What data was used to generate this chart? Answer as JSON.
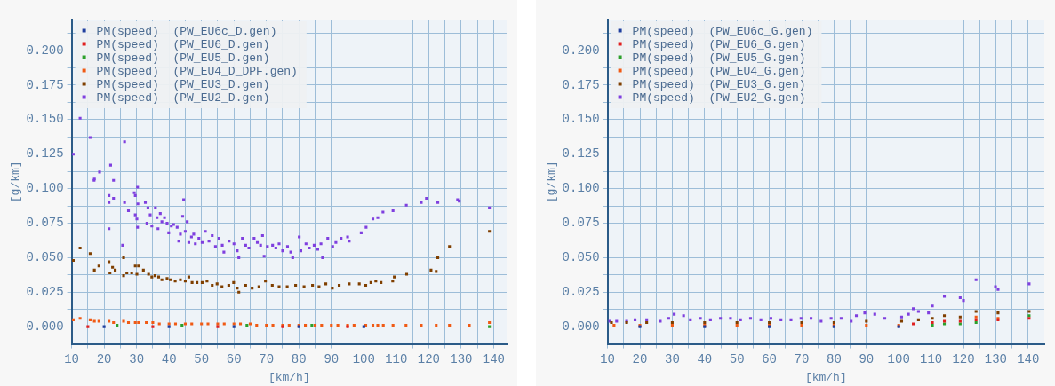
{
  "chart_data": [
    {
      "type": "scatter",
      "xlabel": "[km/h]",
      "ylabel": "[g/km]",
      "xlim": [
        10,
        144
      ],
      "ylim": [
        -0.0125,
        0.2225
      ],
      "xticks": [
        10,
        {
          "value": 15,
          "label": null
        },
        20,
        {
          "value": 25,
          "label": null
        },
        30,
        {
          "value": 35,
          "label": null
        },
        40,
        {
          "value": 45,
          "label": null
        },
        50,
        {
          "value": 55,
          "label": null
        },
        60,
        {
          "value": 65,
          "label": null
        },
        70,
        {
          "value": 75,
          "label": null
        },
        80,
        {
          "value": 85,
          "label": null
        },
        90,
        {
          "value": 95,
          "label": null
        },
        100,
        {
          "value": 105,
          "label": null
        },
        110,
        {
          "value": 115,
          "label": null
        },
        120,
        {
          "value": 125,
          "label": null
        },
        130,
        {
          "value": 135,
          "label": null
        },
        140
      ],
      "yticks": [
        {
          "value": 0,
          "label": "0.000"
        },
        {
          "value": 0.0125,
          "label": null
        },
        {
          "value": 0.025,
          "label": "0.025"
        },
        {
          "value": 0.0375,
          "label": null
        },
        {
          "value": 0.05,
          "label": "0.050"
        },
        {
          "value": 0.0625,
          "label": null
        },
        {
          "value": 0.075,
          "label": "0.075"
        },
        {
          "value": 0.0875,
          "label": null
        },
        {
          "value": 0.1,
          "label": "0.100"
        },
        {
          "value": 0.1125,
          "label": null
        },
        {
          "value": 0.125,
          "label": "0.125"
        },
        {
          "value": 0.1375,
          "label": null
        },
        {
          "value": 0.15,
          "label": "0.150"
        },
        {
          "value": 0.1625,
          "label": null
        },
        {
          "value": 0.175,
          "label": "0.175"
        },
        {
          "value": 0.1875,
          "label": null
        },
        {
          "value": 0.2,
          "label": "0.200"
        },
        {
          "value": 0.2125,
          "label": null
        }
      ],
      "grid": true,
      "legend": "top left",
      "marker": "square",
      "series": [
        {
          "name": "PM(speed)  (PW_EU6c_D.gen)",
          "color": "#1f3f9f",
          "x": [
            20,
            40,
            60,
            80,
            100
          ],
          "values": [
            0.0,
            0.0,
            0.0,
            0.0,
            0.0
          ]
        },
        {
          "name": "PM(speed)  (PW_EU6_D.gen)",
          "color": "#e02020",
          "x": [
            15,
            35,
            55,
            75,
            95
          ],
          "values": [
            0.0,
            0.0,
            0.0,
            0.0,
            0.0
          ]
        },
        {
          "name": "PM(speed)  (PW_EU5_D.gen)",
          "color": "#2ca02c",
          "x": [
            24,
            44,
            64,
            84,
            138.7
          ],
          "values": [
            0.001,
            0.001,
            0.001,
            0.001,
            0.0
          ]
        },
        {
          "name": "PM(speed)  (PW_EU4_D_DPF.gen)",
          "color": "#f05a14",
          "x": [
            10.5,
            12.6,
            15.7,
            17,
            18.4,
            21.5,
            22.9,
            26,
            27.5,
            29.6,
            30.6,
            33,
            35,
            37,
            40,
            42,
            45,
            47,
            50,
            52,
            55,
            57,
            60,
            62,
            65,
            67,
            70,
            72,
            75,
            77,
            80,
            82,
            85,
            87,
            90,
            92,
            95,
            97,
            100.6,
            102.8,
            104.3,
            106,
            109,
            113,
            117.7,
            122.3,
            126.4,
            132.5,
            138.7
          ],
          "values": [
            0.005,
            0.006,
            0.005,
            0.004,
            0.004,
            0.004,
            0.003,
            0.004,
            0.003,
            0.003,
            0.003,
            0.003,
            0.003,
            0.002,
            0.002,
            0.002,
            0.002,
            0.002,
            0.002,
            0.002,
            0.002,
            0.002,
            0.002,
            0.002,
            0.002,
            0.001,
            0.001,
            0.001,
            0.001,
            0.001,
            0.001,
            0.001,
            0.001,
            0.001,
            0.001,
            0.001,
            0.001,
            0.001,
            0.001,
            0.001,
            0.001,
            0.001,
            0.001,
            0.001,
            0.001,
            0.001,
            0.001,
            0.001,
            0.003
          ]
        },
        {
          "name": "PM(speed)  (PW_EU3_D.gen)",
          "color": "#7f3f00",
          "x": [
            10.5,
            12.6,
            15.7,
            17,
            18.4,
            21.5,
            21.8,
            22.6,
            23.4,
            26,
            26,
            27,
            28.5,
            29.6,
            30.1,
            30.6,
            32.1,
            33.7,
            34.7,
            35.7,
            36.8,
            37.8,
            39.4,
            40.4,
            41.9,
            43.5,
            45,
            46.1,
            47.1,
            48.6,
            50.2,
            51.7,
            53.3,
            54.8,
            56.3,
            58.4,
            59.9,
            61,
            61.5,
            63.6,
            65.6,
            67.7,
            69.7,
            71.8,
            73.9,
            76.4,
            79,
            81.6,
            84.2,
            86.2,
            88.3,
            90.3,
            92.4,
            95.5,
            98.6,
            100.6,
            102.2,
            103.7,
            105.3,
            108.9,
            109.4,
            113.2,
            120.7,
            122.3,
            122.8,
            126.4,
            138.7
          ],
          "values": [
            0.048,
            0.057,
            0.053,
            0.041,
            0.044,
            0.047,
            0.039,
            0.043,
            0.041,
            0.05,
            0.037,
            0.039,
            0.039,
            0.044,
            0.038,
            0.044,
            0.041,
            0.038,
            0.036,
            0.037,
            0.036,
            0.034,
            0.035,
            0.034,
            0.033,
            0.034,
            0.033,
            0.036,
            0.032,
            0.032,
            0.032,
            0.033,
            0.03,
            0.031,
            0.029,
            0.03,
            0.032,
            0.028,
            0.025,
            0.03,
            0.028,
            0.029,
            0.033,
            0.03,
            0.029,
            0.029,
            0.03,
            0.029,
            0.03,
            0.029,
            0.031,
            0.028,
            0.03,
            0.031,
            0.031,
            0.03,
            0.032,
            0.033,
            0.032,
            0.033,
            0.036,
            0.038,
            0.041,
            0.04,
            0.05,
            0.058,
            0.069
          ]
        },
        {
          "name": "PM(speed)  (PW_EU2_D.gen)",
          "color": "#7f3fdf",
          "x": [
            10.5,
            12.6,
            15.7,
            16.9,
            17,
            18.6,
            21.5,
            21.5,
            21.5,
            22,
            22.9,
            22.9,
            25.7,
            26.3,
            26.3,
            27.5,
            29.3,
            29.6,
            29.6,
            30.1,
            30.3,
            30.3,
            30.4,
            32.7,
            33.2,
            33.5,
            34.2,
            34.7,
            35.8,
            36.3,
            36.6,
            37.3,
            37.8,
            38.6,
            39.4,
            39.9,
            40.7,
            41.4,
            42.5,
            43,
            43.5,
            44.2,
            44.5,
            45,
            45.6,
            46.1,
            46.9,
            47.6,
            48.1,
            49.2,
            50.2,
            51.2,
            52.3,
            53.3,
            54.3,
            55.4,
            56.4,
            56.9,
            58.5,
            60,
            61,
            61.5,
            62.6,
            63.6,
            64.6,
            66.2,
            67.2,
            68.2,
            68.8,
            69.3,
            70.3,
            71.9,
            72.9,
            73.9,
            75,
            76.5,
            77.5,
            78.1,
            80.1,
            80.6,
            82.2,
            83.2,
            84.7,
            85.8,
            86.8,
            87.3,
            88.9,
            90.4,
            91.4,
            93,
            95,
            95.5,
            99.2,
            100.7,
            102.8,
            104.3,
            105.9,
            109,
            113.1,
            117.7,
            119.3,
            122.8,
            128.9,
            129.4,
            138.7
          ],
          "values": [
            0.125,
            0.151,
            0.137,
            0.106,
            0.107,
            0.112,
            0.095,
            0.09,
            0.071,
            0.117,
            0.106,
            0.093,
            0.059,
            0.134,
            0.09,
            0.084,
            0.097,
            0.095,
            0.081,
            0.078,
            0.072,
            0.101,
            0.089,
            0.09,
            0.075,
            0.086,
            0.081,
            0.073,
            0.086,
            0.079,
            0.071,
            0.082,
            0.076,
            0.079,
            0.075,
            0.068,
            0.073,
            0.074,
            0.072,
            0.062,
            0.067,
            0.08,
            0.092,
            0.069,
            0.076,
            0.061,
            0.065,
            0.067,
            0.06,
            0.064,
            0.061,
            0.069,
            0.062,
            0.066,
            0.058,
            0.064,
            0.059,
            0.054,
            0.062,
            0.06,
            0.055,
            0.05,
            0.064,
            0.059,
            0.057,
            0.064,
            0.061,
            0.059,
            0.066,
            0.051,
            0.058,
            0.059,
            0.057,
            0.06,
            0.055,
            0.058,
            0.054,
            0.05,
            0.065,
            0.055,
            0.06,
            0.057,
            0.059,
            0.056,
            0.06,
            0.05,
            0.064,
            0.058,
            0.061,
            0.064,
            0.065,
            0.062,
            0.068,
            0.072,
            0.078,
            0.079,
            0.083,
            0.084,
            0.088,
            0.09,
            0.093,
            0.09,
            0.092,
            0.091,
            0.086
          ]
        }
      ]
    },
    {
      "type": "scatter",
      "xlabel": "[km/h]",
      "ylabel": "[g/km]",
      "xlim": [
        10,
        145
      ],
      "ylim": [
        -0.0125,
        0.2225
      ],
      "xticks": [
        10,
        {
          "value": 15,
          "label": null
        },
        20,
        {
          "value": 25,
          "label": null
        },
        30,
        {
          "value": 35,
          "label": null
        },
        40,
        {
          "value": 45,
          "label": null
        },
        50,
        {
          "value": 55,
          "label": null
        },
        60,
        {
          "value": 65,
          "label": null
        },
        70,
        {
          "value": 75,
          "label": null
        },
        80,
        {
          "value": 85,
          "label": null
        },
        90,
        {
          "value": 95,
          "label": null
        },
        100,
        {
          "value": 105,
          "label": null
        },
        110,
        {
          "value": 115,
          "label": null
        },
        120,
        {
          "value": 125,
          "label": null
        },
        130,
        {
          "value": 135,
          "label": null
        },
        140
      ],
      "yticks": [
        {
          "value": 0,
          "label": "0.000"
        },
        {
          "value": 0.0125,
          "label": null
        },
        {
          "value": 0.025,
          "label": "0.025"
        },
        {
          "value": 0.0375,
          "label": null
        },
        {
          "value": 0.05,
          "label": "0.050"
        },
        {
          "value": 0.0625,
          "label": null
        },
        {
          "value": 0.075,
          "label": "0.075"
        },
        {
          "value": 0.0875,
          "label": null
        },
        {
          "value": 0.1,
          "label": "0.100"
        },
        {
          "value": 0.1125,
          "label": null
        },
        {
          "value": 0.125,
          "label": "0.125"
        },
        {
          "value": 0.1375,
          "label": null
        },
        {
          "value": 0.15,
          "label": "0.150"
        },
        {
          "value": 0.1625,
          "label": null
        },
        {
          "value": 0.175,
          "label": "0.175"
        },
        {
          "value": 0.1875,
          "label": null
        },
        {
          "value": 0.2,
          "label": "0.200"
        },
        {
          "value": 0.2125,
          "label": null
        }
      ],
      "grid": true,
      "legend": "top left",
      "marker": "square",
      "series": [
        {
          "name": "PM(speed)  (PW_EU6c_G.gen)",
          "color": "#1f3f9f",
          "x": [
            20,
            40,
            60,
            80,
            100
          ],
          "values": [
            0.0,
            0.0,
            0.0,
            0.0,
            0.0
          ]
        },
        {
          "name": "PM(speed)  (PW_EU6_G.gen)",
          "color": "#e02020",
          "x": [
            104.5,
            110.4,
            114.1,
            119,
            123.9,
            130.7,
            140.3
          ],
          "values": [
            0.002,
            0.003,
            0.004,
            0.004,
            0.005,
            0.005,
            0.006
          ]
        },
        {
          "name": "PM(speed)  (PW_EU5_G.gen)",
          "color": "#2ca02c",
          "x": [
            110.4,
            114.1,
            119,
            123.9,
            140.3
          ],
          "values": [
            0.001,
            0.002,
            0.002,
            0.003,
            0.008
          ]
        },
        {
          "name": "PM(speed)  (PW_EU4_G.gen)",
          "color": "#f05a14",
          "x": [
            12,
            20,
            30,
            40,
            50,
            60,
            70,
            80,
            90,
            100,
            123.9,
            130.7
          ],
          "values": [
            0.001,
            0.001,
            0.001,
            0.001,
            0.001,
            0.001,
            0.001,
            0.001,
            0.001,
            0.001,
            0.007,
            0.006
          ]
        },
        {
          "name": "PM(speed)  (PW_EU3_G.gen)",
          "color": "#7f3f00",
          "x": [
            11.2,
            15.9,
            22.1,
            30,
            40,
            50,
            60,
            70,
            80,
            90,
            100.9,
            106.1,
            110.4,
            114.1,
            119,
            123.9,
            130.7,
            140.3
          ],
          "values": [
            0.003,
            0.003,
            0.003,
            0.003,
            0.003,
            0.003,
            0.003,
            0.003,
            0.003,
            0.004,
            0.004,
            0.005,
            0.006,
            0.008,
            0.007,
            0.011,
            0.01,
            0.011
          ]
        },
        {
          "name": "PM(speed)  (PW_EU2_G.gen)",
          "color": "#7f3fdf",
          "x": [
            10.7,
            12.8,
            15.9,
            18.5,
            22.1,
            26.3,
            28.9,
            30.6,
            33.5,
            35.6,
            38.7,
            41.8,
            44.9,
            48,
            51.1,
            54.2,
            57.4,
            60.5,
            63.6,
            66.7,
            69.8,
            72.9,
            76,
            79.1,
            82.2,
            85.3,
            86.9,
            89.5,
            92.6,
            95.7,
            100.9,
            103,
            104.5,
            106.1,
            109.2,
            110.4,
            114.1,
            119,
            120,
            123.9,
            129.9,
            130.7,
            140.3
          ],
          "values": [
            0.004,
            0.004,
            0.004,
            0.005,
            0.005,
            0.004,
            0.006,
            0.009,
            0.008,
            0.005,
            0.006,
            0.005,
            0.006,
            0.006,
            0.005,
            0.006,
            0.005,
            0.006,
            0.005,
            0.005,
            0.006,
            0.006,
            0.004,
            0.006,
            0.006,
            0.004,
            0.008,
            0.01,
            0.009,
            0.006,
            0.007,
            0.009,
            0.013,
            0.011,
            0.01,
            0.015,
            0.022,
            0.021,
            0.019,
            0.034,
            0.029,
            0.027,
            0.031
          ]
        }
      ]
    }
  ]
}
